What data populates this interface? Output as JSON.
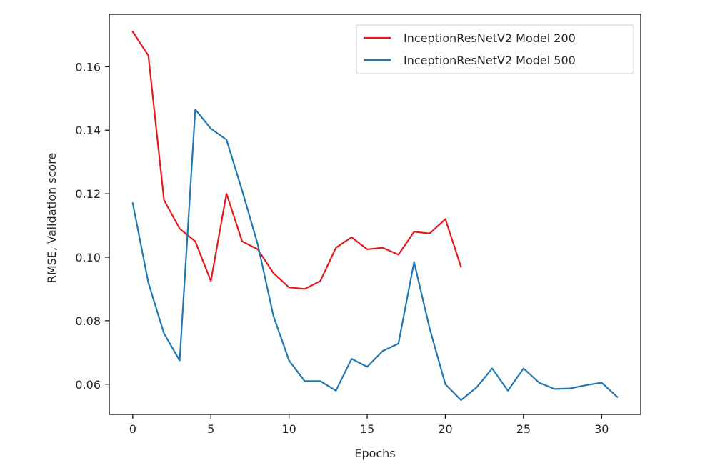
{
  "chart_data": {
    "type": "line",
    "xlabel": "Epochs",
    "ylabel": "RMSE, Validation score",
    "xlim": [
      -1.5,
      32.5
    ],
    "ylim": [
      0.0505,
      0.1765
    ],
    "xticks": [
      0,
      5,
      10,
      15,
      20,
      25,
      30
    ],
    "xtick_labels": [
      "0",
      "5",
      "10",
      "15",
      "20",
      "25",
      "30"
    ],
    "yticks": [
      0.06,
      0.08,
      0.1,
      0.12,
      0.14,
      0.16
    ],
    "ytick_labels": [
      "0.06",
      "0.08",
      "0.10",
      "0.12",
      "0.14",
      "0.16"
    ],
    "grid": false,
    "legend_position": "upper right",
    "series": [
      {
        "name": "InceptionResNetV2 Model 200",
        "color": "#e41a1c",
        "x": [
          0,
          1,
          2,
          3,
          4,
          5,
          6,
          7,
          8,
          9,
          10,
          11,
          12,
          13,
          14,
          15,
          16,
          17,
          18,
          19,
          20,
          21
        ],
        "values": [
          0.171,
          0.1635,
          0.118,
          0.109,
          0.105,
          0.0925,
          0.12,
          0.105,
          0.1025,
          0.095,
          0.0905,
          0.09,
          0.0925,
          0.103,
          0.1063,
          0.1025,
          0.103,
          0.1008,
          0.108,
          0.1075,
          0.112,
          0.097
        ]
      },
      {
        "name": "InceptionResNetV2 Model 500",
        "color": "#1f77b4",
        "x": [
          0,
          1,
          2,
          3,
          4,
          5,
          6,
          7,
          8,
          9,
          10,
          11,
          12,
          13,
          14,
          15,
          16,
          17,
          18,
          19,
          20,
          21,
          22,
          23,
          24,
          25,
          26,
          27,
          28,
          29,
          30,
          31
        ],
        "values": [
          0.117,
          0.092,
          0.076,
          0.0675,
          0.1465,
          0.1405,
          0.137,
          0.121,
          0.104,
          0.0815,
          0.0675,
          0.061,
          0.061,
          0.058,
          0.068,
          0.0655,
          0.0705,
          0.0728,
          0.0985,
          0.0775,
          0.06,
          0.055,
          0.059,
          0.065,
          0.058,
          0.065,
          0.0605,
          0.0585,
          0.0587,
          0.0597,
          0.0605,
          0.056
        ]
      }
    ]
  }
}
